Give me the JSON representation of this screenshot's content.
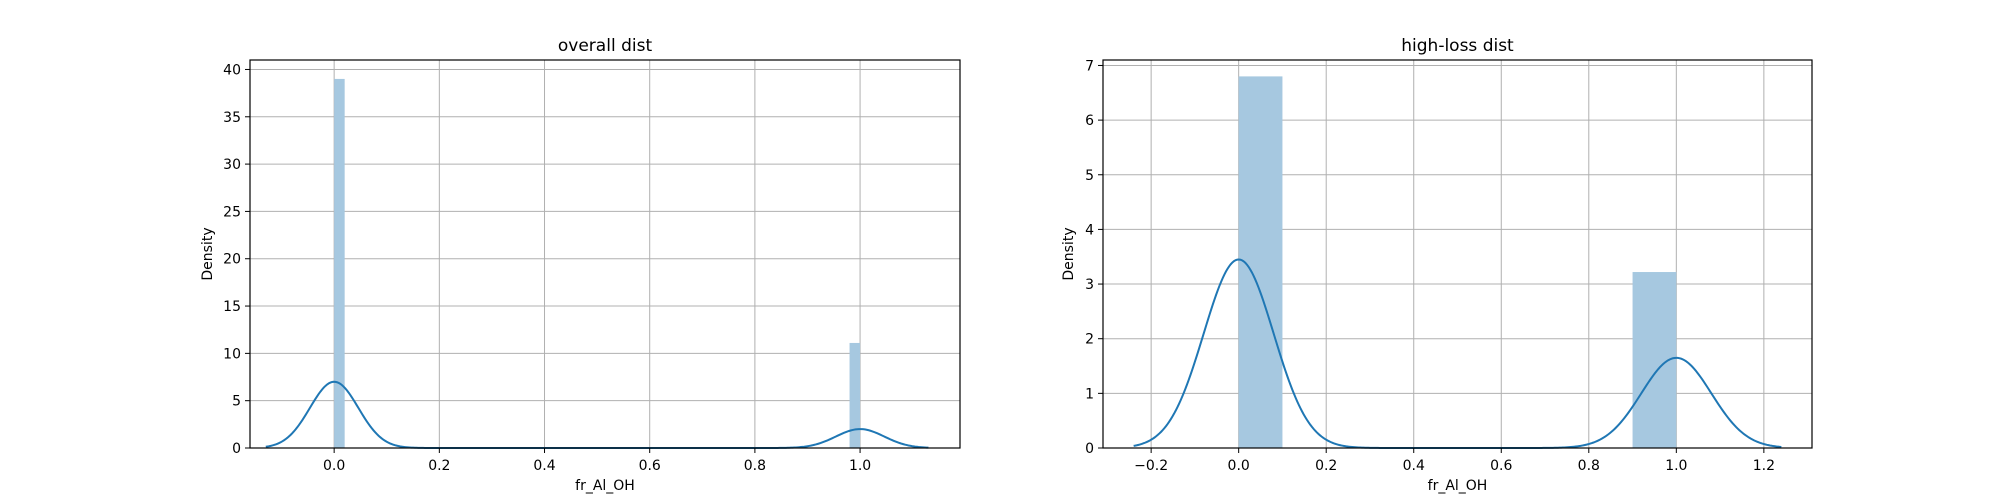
{
  "chart_data": [
    {
      "type": "bar",
      "title": "overall dist",
      "xlabel": "fr_Al_OH",
      "ylabel": "Density",
      "xlim": [
        -0.16,
        1.19
      ],
      "ylim": [
        0,
        41
      ],
      "xticks": [
        0.0,
        0.2,
        0.4,
        0.6,
        0.8,
        1.0
      ],
      "xtick_labels": [
        "0.0",
        "0.2",
        "0.4",
        "0.6",
        "0.8",
        "1.0"
      ],
      "yticks": [
        0,
        5,
        10,
        15,
        20,
        25,
        30,
        35,
        40
      ],
      "ytick_labels": [
        "0",
        "5",
        "10",
        "15",
        "20",
        "25",
        "30",
        "35",
        "40"
      ],
      "grid": true,
      "histogram": {
        "bins": [
          {
            "x0": 0.0,
            "x1": 0.02,
            "density": 39.0
          },
          {
            "x0": 0.98,
            "x1": 1.0,
            "density": 11.1
          }
        ]
      },
      "kde": {
        "x_range": [
          -0.13,
          1.13
        ],
        "components": [
          {
            "center": 0.0,
            "sigma": 0.046,
            "peak": 7.0
          },
          {
            "center": 1.0,
            "sigma": 0.046,
            "peak": 2.0
          }
        ]
      }
    },
    {
      "type": "bar",
      "title": "high-loss dist",
      "xlabel": "fr_Al_OH",
      "ylabel": "Density",
      "xlim": [
        -0.31,
        1.31
      ],
      "ylim": [
        0,
        7.1
      ],
      "xticks": [
        -0.2,
        0.0,
        0.2,
        0.4,
        0.6,
        0.8,
        1.0,
        1.2
      ],
      "xtick_labels": [
        "−0.2",
        "0.0",
        "0.2",
        "0.4",
        "0.6",
        "0.8",
        "1.0",
        "1.2"
      ],
      "yticks": [
        0,
        1,
        2,
        3,
        4,
        5,
        6,
        7
      ],
      "ytick_labels": [
        "0",
        "1",
        "2",
        "3",
        "4",
        "5",
        "6",
        "7"
      ],
      "grid": true,
      "histogram": {
        "bins": [
          {
            "x0": 0.0,
            "x1": 0.1,
            "density": 6.8
          },
          {
            "x0": 0.9,
            "x1": 1.0,
            "density": 3.22
          }
        ]
      },
      "kde": {
        "x_range": [
          -0.24,
          1.24
        ],
        "components": [
          {
            "center": 0.0,
            "sigma": 0.08,
            "peak": 3.45
          },
          {
            "center": 1.0,
            "sigma": 0.08,
            "peak": 1.65
          }
        ]
      }
    }
  ]
}
